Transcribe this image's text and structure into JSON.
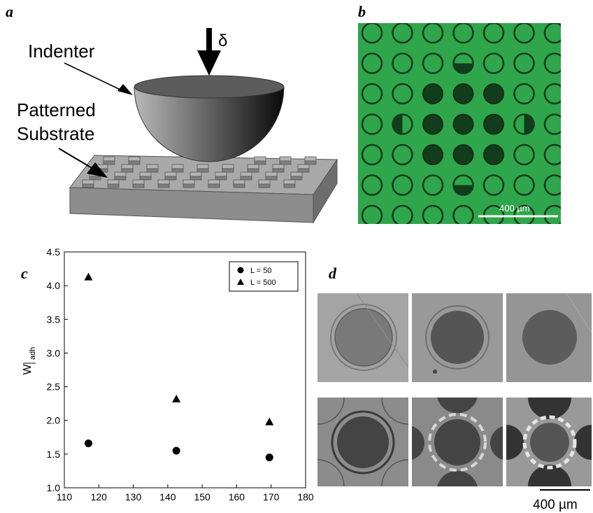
{
  "panels": {
    "a": {
      "letter": "a",
      "indenter_label": "Indenter",
      "delta_label": "δ",
      "substrate_label_line1": "Patterned",
      "substrate_label_line2": "Substrate"
    },
    "b": {
      "letter": "b",
      "scale_bar_label": "400 µm",
      "background_color": "#2fa64b"
    },
    "c": {
      "letter": "c"
    },
    "d": {
      "letter": "d",
      "scale_bar_label": "400 µm"
    }
  },
  "chart_data": {
    "type": "scatter",
    "xlabel": "",
    "ylabel_main": "W",
    "ylabel_sub": "adh",
    "xlim": [
      110,
      180
    ],
    "ylim": [
      1.0,
      4.5
    ],
    "x_ticks": [
      110,
      120,
      130,
      140,
      150,
      160,
      170,
      180
    ],
    "y_ticks": [
      1.0,
      1.5,
      2.0,
      2.5,
      3.0,
      3.5,
      4.0,
      4.5
    ],
    "legend_position": "top-right",
    "series": [
      {
        "name": "L = 50",
        "marker": "circle",
        "x": [
          117,
          142.5,
          169.5
        ],
        "y": [
          1.66,
          1.55,
          1.45
        ]
      },
      {
        "name": "L = 500",
        "marker": "triangle",
        "x": [
          117,
          142.5,
          169.5
        ],
        "y": [
          4.13,
          2.32,
          1.98
        ]
      }
    ]
  }
}
